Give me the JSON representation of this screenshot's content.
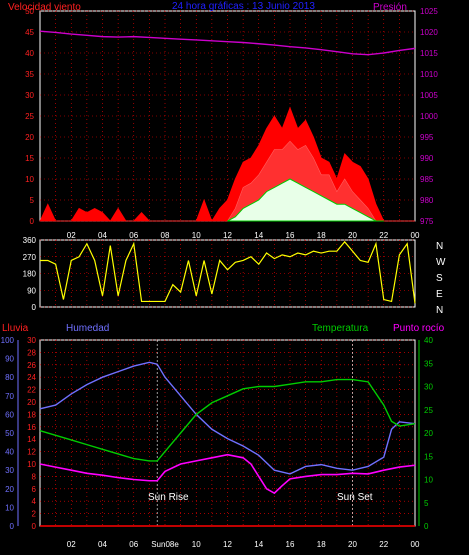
{
  "header": {
    "wind_label": "Velocidad viento",
    "title": "24 hora gráficas : 13 Junio 2013",
    "pressure_label": "Presión"
  },
  "lower_header": {
    "rain_label": "Lluvia",
    "humidity_label": "Humedad",
    "temperature_label": "Temperatura",
    "dewpoint_label": "Punto rocío"
  },
  "colors": {
    "wind": "#ff0000",
    "gust": "#ff0000",
    "avg_wind": "#00cc00",
    "wind_light": "#e8ffe8",
    "pressure": "#cc00cc",
    "direction": "#ffff00",
    "humidity": "#7070ff",
    "temperature": "#00cc00",
    "dewpoint": "#ff00ff",
    "rain": "#ff0000",
    "title": "#2020ff",
    "rain_axis": "#ff2020",
    "humidity_axis": "#7070ff",
    "temp_axis": "#00cc00",
    "pressure_axis": "#cc00cc",
    "frame": "#ffffff",
    "grid": "#ff0000"
  },
  "x_tick_labels": [
    "02",
    "04",
    "06",
    "08",
    "10",
    "12",
    "14",
    "16",
    "18",
    "20",
    "22",
    "00"
  ],
  "lower_x_tick_labels": [
    "02",
    "04",
    "06",
    "Sun08e",
    "10",
    "12",
    "14",
    "16",
    "18",
    "20",
    "22",
    "00"
  ],
  "sun_rise_label": "Sun Rise",
  "sun_set_label": "Sun Set",
  "compass_labels": [
    "N",
    "W",
    "S",
    "E",
    "N"
  ],
  "chart_data": [
    {
      "type": "area",
      "title": "24 hora gráficas : 13 Junio 2013",
      "x_unit": "hour",
      "xlim": [
        0,
        24
      ],
      "left_axis": {
        "label": "Velocidad viento",
        "ylim": [
          0,
          50
        ],
        "ticks": [
          0,
          5,
          10,
          15,
          20,
          25,
          30,
          35,
          40,
          45,
          50
        ]
      },
      "right_axis": {
        "label": "Presión",
        "ylim": [
          975,
          1025
        ],
        "ticks": [
          975,
          980,
          985,
          990,
          995,
          1000,
          1005,
          1010,
          1015,
          1020,
          1025
        ]
      },
      "series": [
        {
          "name": "Presión",
          "axis": "right",
          "x": [
            0,
            1,
            2,
            3,
            4,
            5,
            6,
            7,
            8,
            9,
            10,
            11,
            12,
            13,
            14,
            15,
            16,
            17,
            18,
            19,
            20,
            21,
            22,
            23,
            24
          ],
          "values": [
            1020.2,
            1019.9,
            1019.5,
            1019.2,
            1018.9,
            1018.8,
            1018.9,
            1018.7,
            1018.5,
            1018.3,
            1018.1,
            1017.9,
            1017.7,
            1017.5,
            1017.2,
            1016.9,
            1016.5,
            1016.2,
            1015.8,
            1015.3,
            1014.8,
            1014.6,
            1015.0,
            1015.6,
            1016.1
          ]
        },
        {
          "name": "gust",
          "axis": "left",
          "x": [
            0,
            0.5,
            1,
            1.5,
            2,
            2.5,
            3,
            3.5,
            4,
            4.5,
            5,
            5.5,
            6,
            6.5,
            7,
            7.5,
            8,
            8.5,
            9,
            9.5,
            10,
            10.5,
            11,
            11.5,
            12,
            12.5,
            13,
            13.5,
            14,
            14.5,
            15,
            15.5,
            16,
            16.5,
            17,
            17.5,
            18,
            18.5,
            19,
            19.5,
            20,
            20.5,
            21,
            21.5,
            22,
            22.5,
            23,
            23.5,
            24
          ],
          "values": [
            0,
            4,
            0,
            0,
            0,
            3,
            2,
            3,
            2,
            0,
            3,
            0,
            0,
            2,
            0,
            0,
            0,
            0,
            0,
            0,
            0,
            5,
            0,
            3,
            5,
            10,
            14,
            15,
            18,
            22,
            25,
            22,
            27,
            22,
            24,
            20,
            15,
            14,
            10,
            16,
            14,
            13,
            10,
            4,
            0,
            0,
            0,
            0,
            0
          ]
        },
        {
          "name": "wind",
          "axis": "left",
          "x": [
            12,
            12.5,
            13,
            13.5,
            14,
            14.5,
            15,
            15.5,
            16,
            16.5,
            17,
            17.5,
            18,
            18.5,
            19,
            19.5,
            20,
            20.5,
            21,
            21.5,
            22
          ],
          "values": [
            0,
            3,
            8,
            9,
            11,
            14,
            17,
            17,
            19,
            17,
            18,
            15,
            11,
            11,
            7,
            10,
            7,
            5,
            3,
            0,
            0
          ]
        },
        {
          "name": "average",
          "axis": "left",
          "x": [
            12,
            12.5,
            13,
            13.5,
            14,
            14.5,
            15,
            15.5,
            16,
            16.5,
            17,
            17.5,
            18,
            18.5,
            19,
            19.5,
            20,
            20.5,
            21,
            21.5,
            22
          ],
          "values": [
            0,
            1,
            3,
            4,
            5,
            7,
            8,
            9,
            10,
            9,
            8,
            7,
            6,
            5,
            4,
            4,
            3,
            2,
            1,
            0,
            0
          ]
        }
      ]
    },
    {
      "type": "line",
      "x_unit": "hour",
      "xlim": [
        0,
        24
      ],
      "ylim": [
        0,
        360
      ],
      "ticks": [
        0,
        90,
        180,
        270,
        360
      ],
      "series": [
        {
          "name": "direction",
          "x": [
            0,
            0.5,
            1,
            1.5,
            2,
            2.5,
            3,
            3.5,
            4,
            4.5,
            5,
            5.5,
            6,
            6.5,
            7,
            7.5,
            8,
            8.5,
            9,
            9.5,
            10,
            10.5,
            11,
            11.5,
            12,
            12.5,
            13,
            13.5,
            14,
            14.5,
            15,
            15.5,
            16,
            16.5,
            17,
            17.5,
            18,
            18.5,
            19,
            19.5,
            20,
            20.5,
            21,
            21.5,
            22,
            22.5,
            23,
            23.5,
            24
          ],
          "values": [
            250,
            250,
            230,
            40,
            250,
            270,
            340,
            250,
            60,
            330,
            60,
            250,
            340,
            30,
            30,
            30,
            30,
            120,
            80,
            250,
            60,
            250,
            70,
            250,
            200,
            240,
            250,
            270,
            230,
            290,
            260,
            280,
            270,
            290,
            280,
            300,
            290,
            300,
            300,
            350,
            300,
            250,
            240,
            340,
            40,
            30,
            280,
            340,
            20
          ]
        }
      ]
    },
    {
      "type": "line",
      "x_unit": "hour",
      "xlim": [
        0,
        24
      ],
      "axes": {
        "rain": {
          "label": "Lluvia",
          "ylim": [
            0,
            30
          ],
          "ticks": [
            0,
            2,
            4,
            6,
            8,
            10,
            12,
            14,
            16,
            18,
            20,
            22,
            24,
            26,
            28,
            30
          ]
        },
        "humidity": {
          "label": "Humedad",
          "ylim": [
            0,
            100
          ],
          "ticks": [
            0,
            10,
            20,
            30,
            40,
            50,
            60,
            70,
            80,
            90,
            100
          ]
        },
        "temperature": {
          "label": "Temperatura",
          "ylim": [
            0,
            40
          ],
          "ticks": [
            0,
            5,
            10,
            15,
            20,
            25,
            30,
            35,
            40
          ]
        }
      },
      "series": [
        {
          "name": "Humedad",
          "axis": "humidity",
          "x": [
            0,
            1,
            2,
            3,
            4,
            5,
            6,
            7,
            7.5,
            8,
            9,
            10,
            11,
            12,
            13,
            14,
            15,
            16,
            17,
            18,
            19,
            20,
            21,
            22,
            22.5,
            23,
            24
          ],
          "values": [
            63,
            65,
            71,
            76,
            80,
            83,
            86,
            88,
            87,
            80,
            70,
            60,
            52,
            47,
            43,
            38,
            30,
            28,
            32,
            33,
            31,
            30,
            32,
            37,
            52,
            56,
            55
          ]
        },
        {
          "name": "Temperatura",
          "axis": "temperature",
          "x": [
            0,
            1,
            2,
            3,
            4,
            5,
            6,
            7,
            7.5,
            8,
            9,
            10,
            11,
            12,
            13,
            14,
            15,
            16,
            17,
            18,
            19,
            20,
            21,
            22,
            22.5,
            23,
            24
          ],
          "values": [
            20.5,
            19.5,
            18.5,
            17.5,
            16.5,
            15.5,
            14.5,
            14,
            14,
            16,
            20,
            24,
            26.5,
            28,
            29.5,
            30,
            30,
            30.5,
            31,
            31,
            31.5,
            31.5,
            31,
            26,
            22.5,
            21.5,
            22
          ]
        },
        {
          "name": "Punto rocío",
          "axis": "rain",
          "x": [
            0,
            1,
            2,
            3,
            4,
            5,
            6,
            7,
            7.5,
            8,
            9,
            10,
            11,
            12,
            13,
            13.5,
            14,
            14.5,
            15,
            15.5,
            16,
            17,
            18,
            19,
            20,
            21,
            22,
            23,
            24
          ],
          "values": [
            10,
            9.5,
            9,
            8.5,
            8.2,
            7.8,
            7.5,
            7.3,
            7.3,
            8.8,
            10,
            10.5,
            11,
            11.5,
            11,
            10,
            8,
            6,
            5.3,
            6.5,
            7.6,
            8,
            8.3,
            8.3,
            8.5,
            8.4,
            9,
            9.5,
            9.8
          ]
        },
        {
          "name": "Lluvia",
          "axis": "rain",
          "x": [
            0,
            24
          ],
          "values": [
            0,
            0
          ]
        }
      ]
    }
  ]
}
